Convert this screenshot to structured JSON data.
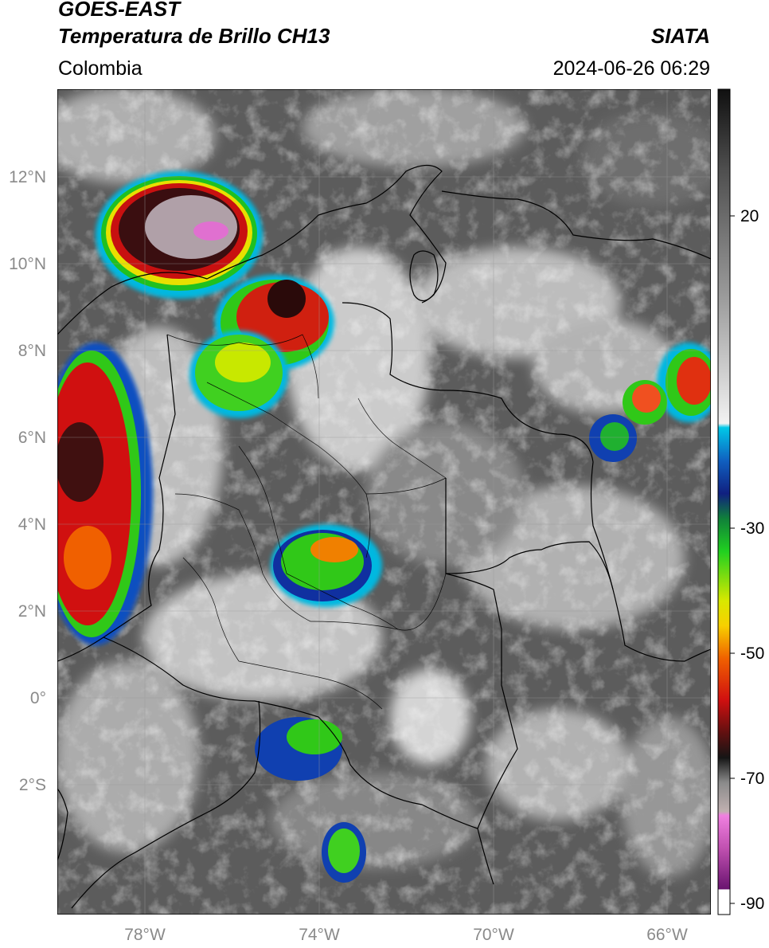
{
  "header": {
    "satellite": "GOES-EAST",
    "product": "Temperatura de Brillo CH13",
    "organization": "SIATA",
    "region": "Colombia",
    "timestamp": "2024-06-26 06:29"
  },
  "map": {
    "lon_range": [
      -80,
      -65
    ],
    "lat_range": [
      -5,
      14
    ],
    "lat_ticks": [
      {
        "value": 12,
        "label": "12°N"
      },
      {
        "value": 10,
        "label": "10°N"
      },
      {
        "value": 8,
        "label": "8°N"
      },
      {
        "value": 6,
        "label": "6°N"
      },
      {
        "value": 4,
        "label": "4°N"
      },
      {
        "value": 2,
        "label": "2°N"
      },
      {
        "value": 0,
        "label": "0°"
      },
      {
        "value": -2,
        "label": "2°S"
      }
    ],
    "lon_ticks": [
      {
        "value": -78,
        "label": "78°W"
      },
      {
        "value": -74,
        "label": "74°W"
      },
      {
        "value": -70,
        "label": "70°W"
      },
      {
        "value": -66,
        "label": "66°W"
      }
    ],
    "gridlines": true
  },
  "colorbar": {
    "range": [
      -92,
      32
    ],
    "tick_labels": [
      {
        "value": 20,
        "label": "20"
      },
      {
        "value": -30,
        "label": "-30"
      },
      {
        "value": -50,
        "label": "-50"
      },
      {
        "value": -70,
        "label": "-70"
      },
      {
        "value": -90,
        "label": "-90"
      }
    ]
  },
  "colors": {
    "cold_core": "#3a0e10",
    "deep_red": "#c81010",
    "yellow": "#f2e600",
    "green": "#3ecf1e",
    "blue": "#1030b0",
    "cyan": "#00c8e8",
    "magenta": "#e070d0"
  }
}
